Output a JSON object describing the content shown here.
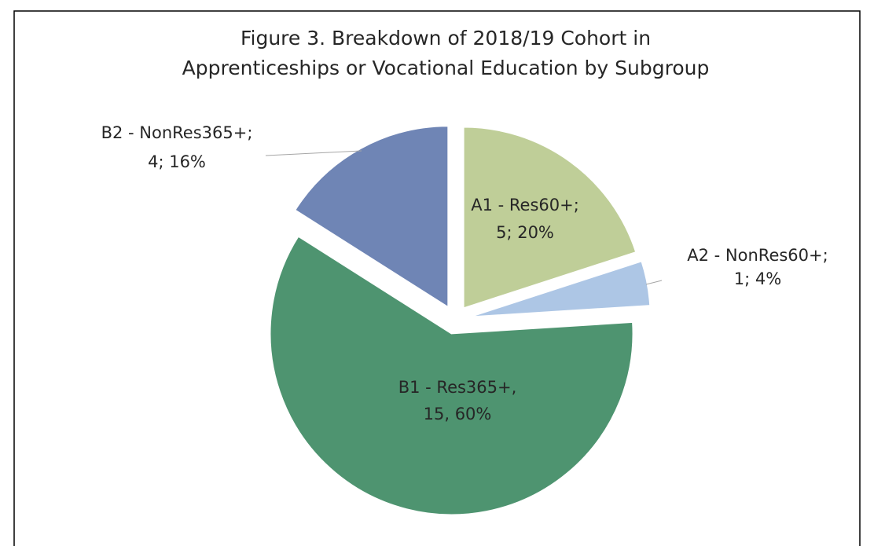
{
  "chart_data": {
    "type": "pie",
    "title": [
      "Figure 3. Breakdown of 2018/19 Cohort in",
      "Apprenticeships or Vocational Education by Subgroup"
    ],
    "categories": [
      "A1 - Res60+;",
      "A2 - NonRes60+;",
      "B1 - Res365+,",
      "B2 - NonRes365+;"
    ],
    "values": [
      5,
      1,
      15,
      4
    ],
    "value_labels": [
      "5; 20%",
      "1; 4%",
      "15, 60%",
      "4; 16%"
    ],
    "colors": [
      "#bfce98",
      "#adc6e5",
      "#4e9470",
      "#6f85b5"
    ]
  }
}
